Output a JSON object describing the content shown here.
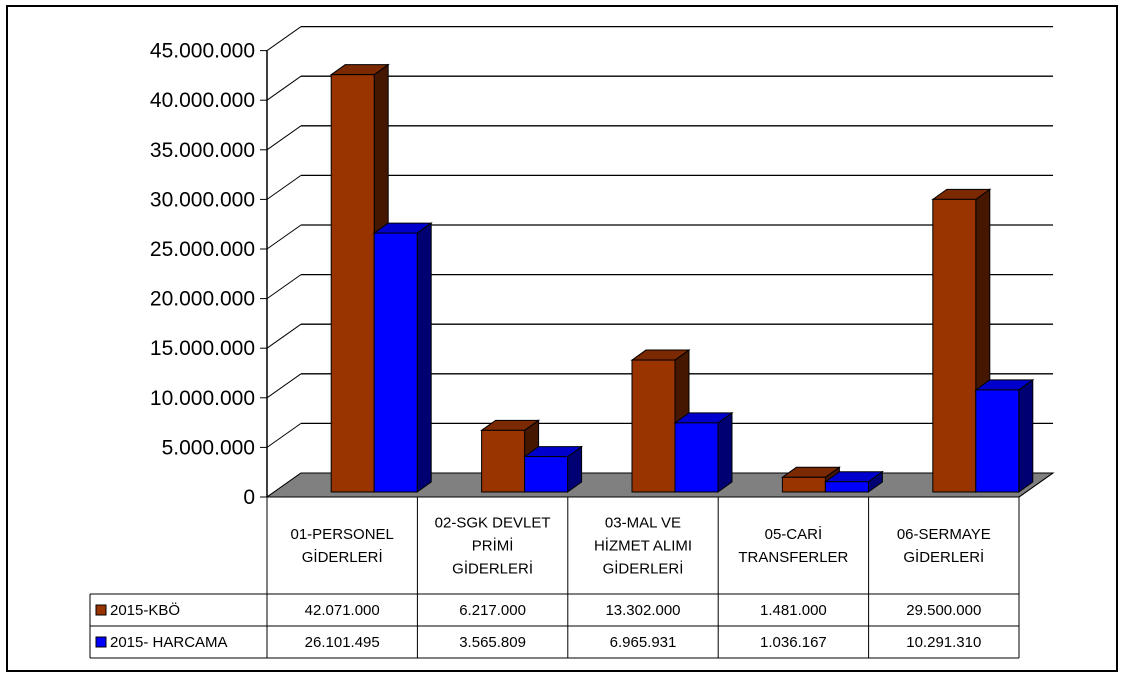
{
  "chart_data": {
    "type": "bar",
    "categories": [
      [
        "01-PERSONEL",
        "GİDERLERİ"
      ],
      [
        "02-SGK DEVLET",
        "PRİMİ",
        "GİDERLERİ"
      ],
      [
        "03-MAL VE",
        "HİZMET ALIMI",
        "GİDERLERİ"
      ],
      [
        "05-CARİ",
        "TRANSFERLER"
      ],
      [
        "06-SERMAYE",
        "GİDERLERİ"
      ]
    ],
    "series": [
      {
        "name": "2015-KBÖ",
        "color": "#993300",
        "values": [
          42071000,
          6217000,
          13302000,
          1481000,
          29500000
        ],
        "labels": [
          "42.071.000",
          "6.217.000",
          "13.302.000",
          "1.481.000",
          "29.500.000"
        ]
      },
      {
        "name": "2015- HARCAMA",
        "color": "#0000FF",
        "values": [
          26101495,
          3565809,
          6965931,
          1036167,
          10291310
        ],
        "labels": [
          "26.101.495",
          "3.565.809",
          "6.965.931",
          "1.036.167",
          "10.291.310"
        ]
      }
    ],
    "yticks": [
      {
        "v": 0,
        "label": "0"
      },
      {
        "v": 5000000,
        "label": "5.000.000"
      },
      {
        "v": 10000000,
        "label": "10.000.000"
      },
      {
        "v": 15000000,
        "label": "15.000.000"
      },
      {
        "v": 20000000,
        "label": "20.000.000"
      },
      {
        "v": 25000000,
        "label": "25.000.000"
      },
      {
        "v": 30000000,
        "label": "30.000.000"
      },
      {
        "v": 35000000,
        "label": "35.000.000"
      },
      {
        "v": 40000000,
        "label": "40.000.000"
      },
      {
        "v": 45000000,
        "label": "45.000.000"
      }
    ],
    "ylim": [
      0,
      45000000
    ],
    "grid": true,
    "legend": "data-table",
    "style": "3d-clustered-column"
  }
}
